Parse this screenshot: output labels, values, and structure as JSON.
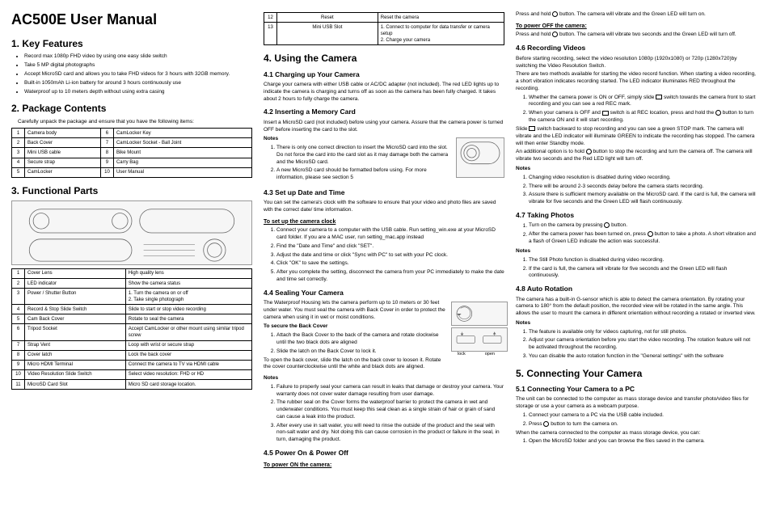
{
  "title": "AC500E User Manual",
  "s1": {
    "heading": "1.  Key Features",
    "bullets": [
      "Record max 1080p FHD video by using one easy slide switch",
      "Take 5 MP digital photographs",
      "Accept MicroSD card and allows you to take FHD videos for 3 hours with 32GB memory.",
      "Built-in 1050mAh Li-ion battery for around 3 hours continuously use",
      "Waterproof up to 10 meters depth without using extra casing"
    ]
  },
  "s2": {
    "heading": "2.  Package Contents",
    "intro": "Carefully unpack the package and ensure that you have the following items:",
    "rows": [
      {
        "n1": "1",
        "l1": "Camera body",
        "n2": "6",
        "l2": "CamLocker Key"
      },
      {
        "n1": "2",
        "l1": "Back Cover",
        "n2": "7",
        "l2": "CamLocker Socket - Ball Joint"
      },
      {
        "n1": "3",
        "l1": "Mini USB cable",
        "n2": "8",
        "l2": "Bike Mount"
      },
      {
        "n1": "4",
        "l1": "Secure strap",
        "n2": "9",
        "l2": "Carry Bag"
      },
      {
        "n1": "5",
        "l1": "CamLocker",
        "n2": "10",
        "l2": "User Manual"
      }
    ]
  },
  "s3": {
    "heading": "3.  Functional Parts",
    "rows": [
      {
        "n": "1",
        "l": "Cover Lens",
        "d": "High quality lens"
      },
      {
        "n": "2",
        "l": "LED indicator",
        "d": "Show the camera status"
      },
      {
        "n": "3",
        "l": "Power / Shutter Button",
        "d": "1. Turn the camera on or off\n2. Take single photograph"
      },
      {
        "n": "4",
        "l": "Record & Stop Slide Switch",
        "d": "Slide to start or stop video recording"
      },
      {
        "n": "5",
        "l": "Cam Back Cover",
        "d": "Rotate to seal the camera"
      },
      {
        "n": "6",
        "l": "Tripod Socket",
        "d": "Accept CamLocker or other mount using similar tripod screw"
      },
      {
        "n": "7",
        "l": "Strap Vent",
        "d": "Loop with wrist or secure strap"
      },
      {
        "n": "8",
        "l": "Cover latch",
        "d": "Lock the back cover"
      },
      {
        "n": "9",
        "l": "Micro HDMI Terminal",
        "d": "Connect the camera to TV via HDMI cable"
      },
      {
        "n": "10",
        "l": "Video Resolution Slide Switch",
        "d": "Select video resolution: FHD or HD"
      },
      {
        "n": "11",
        "l": "MicroSD Card Slot",
        "d": "Micro SD card storage location."
      }
    ]
  },
  "s3b": {
    "rows": [
      {
        "n": "12",
        "l": "Reset",
        "d": "Reset the camera"
      },
      {
        "n": "13",
        "l": "Mini USB Slot",
        "d": "1. Connect to computer for data transfer or camera setup\n2. Charge your camera"
      }
    ]
  },
  "s4": {
    "heading": "4. Using the Camera",
    "s41": {
      "h": "4.1 Charging up Your Camera",
      "p": "Charge your camera with either USB cable or AC/DC adapter (not included). The red LED lights up to indicate the camera is charging and turns off as soon as the camera has been fully charged. It takes about 2 hours to fully charge the camera."
    },
    "s42": {
      "h": "4.2 Inserting a Memory Card",
      "p": "Insert a MicroSD card (not included) before using your camera. Assure that the camera power is turned OFF before inserting the card to the slot.",
      "notes_h": "Notes",
      "notes": [
        "There is only one correct direction to insert the MicroSD card into the slot. Do not force the card into the card slot as it may damage both the camera and the MicroSD card.",
        "A new MicroSD card should be formatted before using. For more information, please see section 5"
      ]
    },
    "s43": {
      "h": "4.3 Set up Date and Time",
      "p": "You can set the camera's clock with the software to ensure that your video and photo files are saved with the correct date/ time information.",
      "sub_h": "To set up the camera clock",
      "steps": [
        "Connect your camera to a computer with the USB cable. Run setting_win.exe at your MicroSD card folder. If you are a MAC user, run setting_mac.app instead",
        "Find the \"Date and Time\" and click \"SET\".",
        "Adjust the date and time or click \"Sync with PC\" to set with your PC clock.",
        "Click \"OK\" to save the settings.",
        "After you complete the setting, disconnect the camera from your PC immediately to make the date and time set correctly."
      ]
    },
    "s44": {
      "h": "4.4 Sealing Your Camera",
      "p1": "The Waterproof Housing lets the camera perform up to 10 meters or 30 feet under water. You must seal the camera with Back Cover in order to protect the camera when using it in wet or moist conditions.",
      "sub1_h": "To secure the Back Cover",
      "sub1": [
        "Attach the Back Cover to the back of the camera and rotate clockwise until the two black dots are aligned",
        "Slide the latch on the Back Cover to lock it."
      ],
      "p2": "To open the back cover, slide the latch on the back cover to loosen it. Rotate the cover counterclockwise until the white and black dots are aligned.",
      "lock": "lock",
      "open": "open",
      "notes_h": "Notes",
      "notes": [
        "Failure to properly seal your camera can result in leaks that damage or destroy your camera. Your warranty does not cover water damage resulting from user damage.",
        "The rubber seal on the Cover forms the waterproof barrier to protect the camera in wet and underwater conditions. You must keep this seal clean as a single strain of hair or grain of sand can cause a leak into the product.",
        "After every use in salt water, you will need to rinse the outside of the product and the seal with non-salt water and dry. Not doing this can cause corrosion in the product or failure in the seal, in turn, damaging the product."
      ]
    },
    "s45": {
      "h": "4.5 Power On & Power Off",
      "on_h": "To power ON the camera:",
      "on_p": "Press and hold  button. The camera will vibrate and the Green LED will turn on.",
      "off_h": "To power OFF the camera:",
      "off_p": "Press and hold  button. The camera will vibrate two seconds and the Green LED will turn off."
    },
    "s46": {
      "h": "4.6 Recording Videos",
      "p1": "Before starting recording, select the video resolution 1080p (1920x1080) or 720p (1280x720)by switching the Video Resolution Switch.",
      "p2": "There are two methods available for starting the video record function. When starting a video recording, a short vibration indicates recording started. The LED indicator illuminates RED throughout the recording.",
      "steps": [
        "Whether the camera power is ON or OFF, simply slide  switch towards the camera front to start recording and you can see a red REC mark.",
        "When your camera is OFF and  switch is at REC location, press and hold the  button to turn the camera ON and it will start recording."
      ],
      "p3": "Slide  switch backward to stop recording and you can see a green STOP mark. The camera will vibrate and the LED indicator will illuminate GREEN to indicate the recording has stopped. The camera will then enter Standby mode.",
      "p4": "An additional option is to hold  button to stop the recording and turn the camera off. The camera will vibrate two seconds and the Red LED light will turn off.",
      "notes_h": "Notes",
      "notes": [
        "Changing video resolution is disabled during video recording.",
        "There will be around 2-3 seconds delay before the camera starts recording.",
        "Assure there is sufficient memory available on the MicroSD card. If the card is full, the camera will vibrate for five seconds and the Green LED will flash continuously."
      ]
    },
    "s47": {
      "h": "4.7 Taking Photos",
      "steps": [
        "Turn on the camera by pressing  button.",
        "After the camera power has been turned on, press  button to take a photo. A short vibration and a flash of Green LED indicate the action was successful."
      ],
      "notes_h": "Notes",
      "notes": [
        "The Still Photo function is disabled during video recording.",
        "If the card is full, the camera will vibrate for five seconds and the Green LED will flash continuously."
      ]
    },
    "s48": {
      "h": "4.8 Auto Rotation",
      "p": "The camera has a built-in G-sensor which is able to detect the camera orientation. By rotating your camera to 180° from the default position, the recorded view will be rotated in the same angle. This allows the user to mount the camera in different orientation without recording a rotated or inverted view.",
      "notes_h": "Notes",
      "notes": [
        "The feature is available only for videos capturing, not for still photos.",
        "Adjust your camera orientation before you start the video recording. The rotation feature will not be activated throughout the recording.",
        "You can disable the auto rotation function in the \"General settings\" with the software"
      ]
    }
  },
  "s5": {
    "heading": "5. Connecting Your Camera",
    "s51": {
      "h": "5.1 Connecting Your Camera to a PC",
      "p": "The unit can be connected to the computer as mass storage device and transfer photo/video files for storage or use a your camera as a webcam purpose.",
      "steps": [
        "Connect your camera to a PC via the USB cable included.",
        "Press  button to turn the camera on."
      ],
      "p2": "When the camera connected to the computer as mass storage device, you can:",
      "steps2": [
        "Open the MicroSD folder and you can browse the files saved in the camera."
      ]
    }
  }
}
